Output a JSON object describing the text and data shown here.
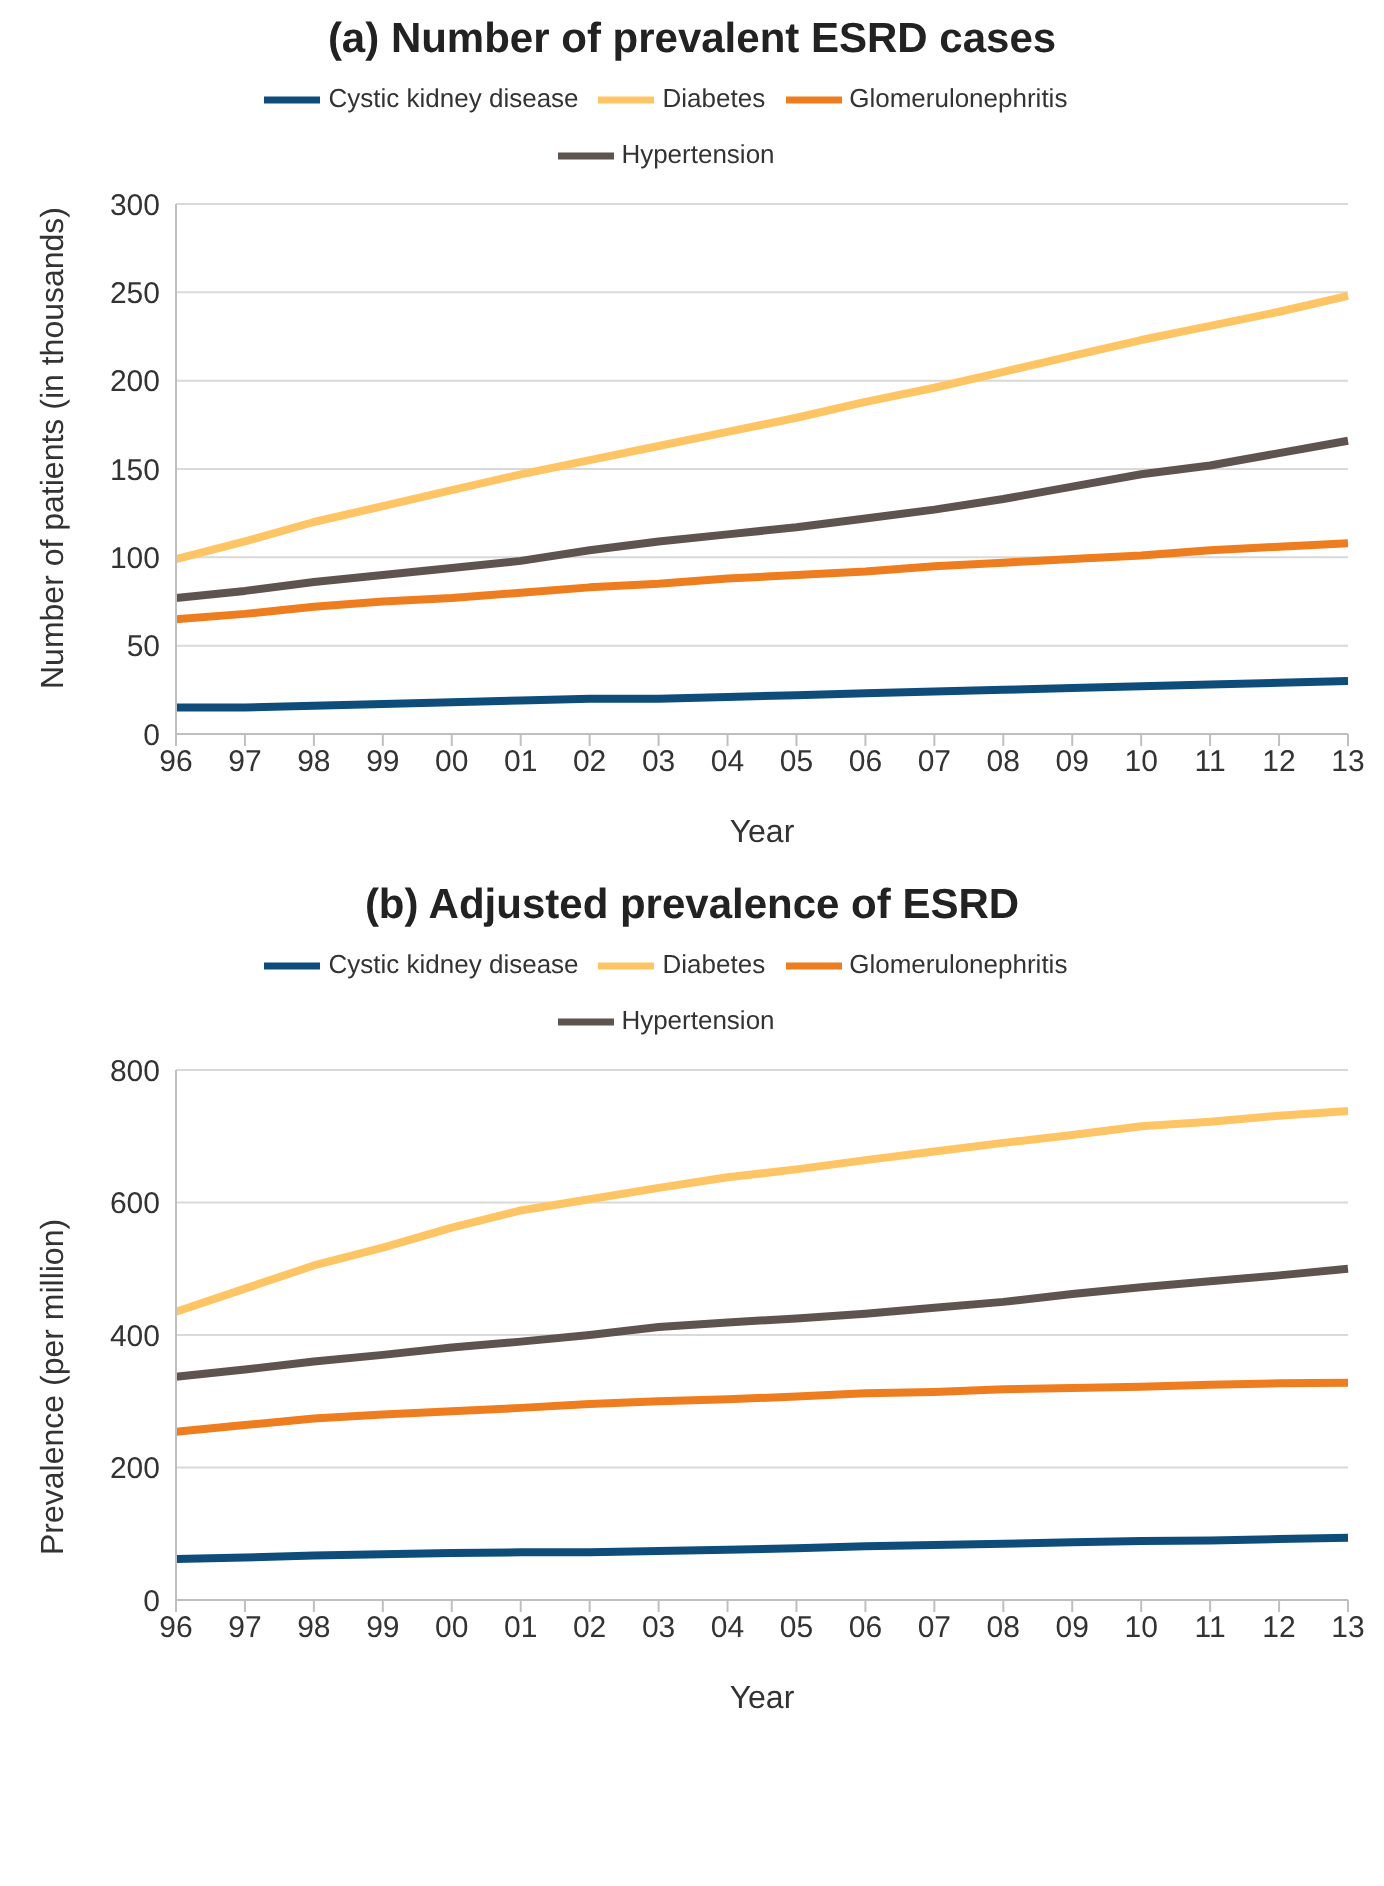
{
  "chart_data": [
    {
      "type": "line",
      "title": "(a) Number of prevalent ESRD cases",
      "xlabel": "Year",
      "ylabel": "Number of patients (in thousands)",
      "categories": [
        "96",
        "97",
        "98",
        "99",
        "00",
        "01",
        "02",
        "03",
        "04",
        "05",
        "06",
        "07",
        "08",
        "09",
        "10",
        "11",
        "12",
        "13"
      ],
      "series": [
        {
          "name": "Cystic kidney disease",
          "color": "#0e4d7a",
          "values": [
            15,
            15,
            16,
            17,
            18,
            19,
            20,
            20,
            21,
            22,
            23,
            24,
            25,
            26,
            27,
            28,
            29,
            30
          ]
        },
        {
          "name": "Diabetes",
          "color": "#ffc564",
          "values": [
            99,
            109,
            120,
            129,
            138,
            147,
            155,
            163,
            171,
            179,
            188,
            196,
            205,
            214,
            223,
            231,
            239,
            248
          ]
        },
        {
          "name": "Glomerulonephritis",
          "color": "#ed7d1e",
          "values": [
            65,
            68,
            72,
            75,
            77,
            80,
            83,
            85,
            88,
            90,
            92,
            95,
            97,
            99,
            101,
            104,
            106,
            108
          ]
        },
        {
          "name": "Hypertension",
          "color": "#5f5350",
          "values": [
            77,
            81,
            86,
            90,
            94,
            98,
            104,
            109,
            113,
            117,
            122,
            127,
            133,
            140,
            147,
            152,
            159,
            166
          ]
        }
      ],
      "ylim": [
        0,
        300
      ],
      "yticks": [
        0,
        50,
        100,
        150,
        200,
        250,
        300
      ],
      "grid": "y",
      "legend": "top",
      "marker": "none",
      "line_style": "solid"
    },
    {
      "type": "line",
      "title": "(b) Adjusted prevalence of ESRD",
      "xlabel": "Year",
      "ylabel": "Prevalence (per million)",
      "categories": [
        "96",
        "97",
        "98",
        "99",
        "00",
        "01",
        "02",
        "03",
        "04",
        "05",
        "06",
        "07",
        "08",
        "09",
        "10",
        "11",
        "12",
        "13"
      ],
      "series": [
        {
          "name": "Cystic kidney disease",
          "color": "#0e4d7a",
          "values": [
            62,
            64,
            67,
            69,
            71,
            72,
            72,
            74,
            76,
            78,
            81,
            83,
            85,
            87,
            89,
            90,
            92,
            94
          ]
        },
        {
          "name": "Diabetes",
          "color": "#ffc564",
          "values": [
            435,
            470,
            505,
            532,
            562,
            588,
            605,
            622,
            638,
            650,
            664,
            677,
            690,
            702,
            715,
            722,
            731,
            738
          ]
        },
        {
          "name": "Glomerulonephritis",
          "color": "#ed7d1e",
          "values": [
            254,
            264,
            274,
            280,
            285,
            290,
            296,
            300,
            303,
            307,
            312,
            314,
            318,
            320,
            322,
            325,
            327,
            328
          ]
        },
        {
          "name": "Hypertension",
          "color": "#5f5350",
          "values": [
            337,
            348,
            360,
            370,
            381,
            390,
            400,
            412,
            419,
            425,
            432,
            441,
            450,
            462,
            472,
            481,
            490,
            500
          ]
        }
      ],
      "ylim": [
        0,
        800
      ],
      "yticks": [
        0,
        200,
        400,
        600,
        800
      ],
      "grid": "y",
      "legend": "top",
      "marker": "none",
      "line_style": "solid"
    }
  ]
}
